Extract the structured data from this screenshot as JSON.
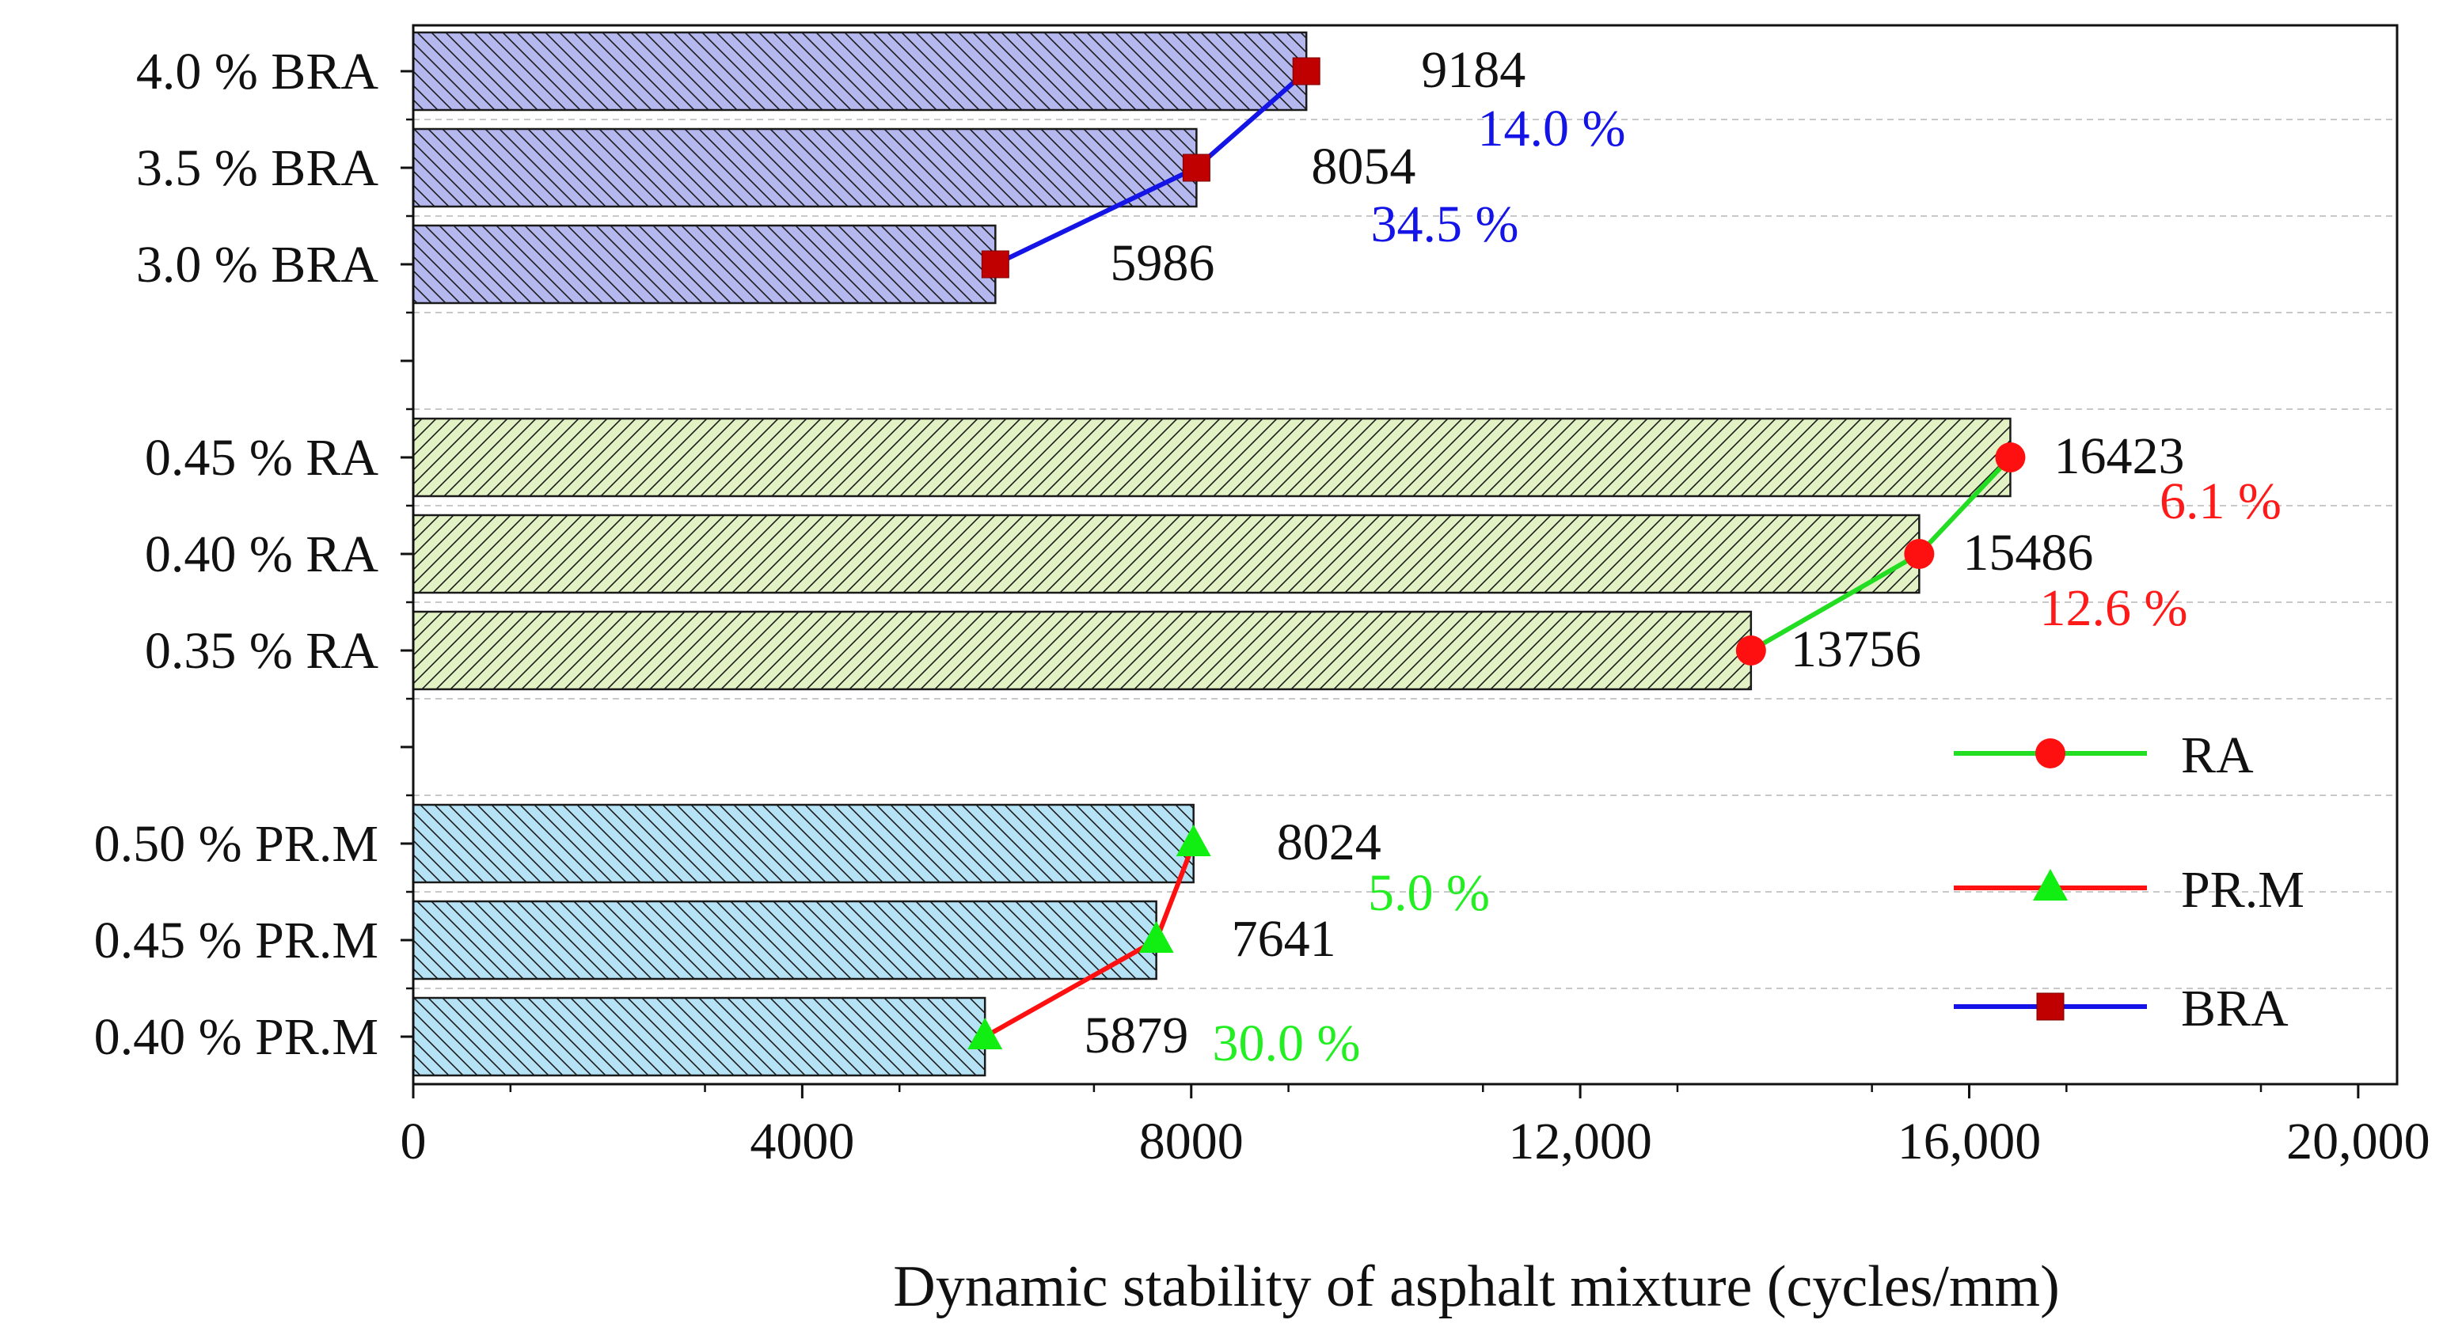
{
  "chart_data": {
    "type": "bar",
    "orientation": "horizontal",
    "xlabel": "Dynamic stability of asphalt mixture (cycles/mm)",
    "xlim": [
      0,
      20400
    ],
    "xticks": [
      0,
      4000,
      8000,
      12000,
      16000,
      20000
    ],
    "xtick_labels": [
      "0",
      "4000",
      "8000",
      "12,000",
      "16,000",
      "20,000"
    ],
    "grid": "horizontal-dashed",
    "groups": [
      {
        "name": "BRA",
        "bar_color": "#b5b8ef",
        "hatch": "backslash",
        "line_color": "#1414e6",
        "marker": "square",
        "marker_color": "#c00000",
        "categories": [
          "4.0 % BRA",
          "3.5 % BRA",
          "3.0 % BRA"
        ],
        "values": [
          9184,
          8054,
          5986
        ],
        "value_labels": [
          "9184",
          "8054",
          "5986"
        ],
        "increase_labels": [
          "14.0 %",
          "34.5 %"
        ],
        "increase_color": "#1414e6"
      },
      {
        "name": "RA",
        "bar_color": "#e3f2c4",
        "hatch": "slash",
        "line_color": "#22dd22",
        "marker": "circle",
        "marker_color": "#ff1010",
        "categories": [
          "0.45 % RA",
          "0.40 % RA",
          "0.35 % RA"
        ],
        "values": [
          16423,
          15486,
          13756
        ],
        "value_labels": [
          "16423",
          "15486",
          "13756"
        ],
        "increase_labels": [
          "6.1 %",
          "12.6 %"
        ],
        "increase_color": "#ff1a1a"
      },
      {
        "name": "PR.M",
        "bar_color": "#b6e2f6",
        "hatch": "backslash",
        "line_color": "#ff1010",
        "marker": "triangle",
        "marker_color": "#11ee11",
        "categories": [
          "0.50 % PR.M",
          "0.45 % PR.M",
          "0.40 % PR.M"
        ],
        "values": [
          8024,
          7641,
          5879
        ],
        "value_labels": [
          "8024",
          "7641",
          "5879"
        ],
        "increase_labels": [
          "5.0 %",
          "30.0 %"
        ],
        "increase_color": "#22ee22"
      }
    ],
    "legend": {
      "placement": "right-bottom",
      "entries": [
        {
          "label": "RA",
          "line_color": "#22dd22",
          "marker": "circle",
          "marker_color": "#ff1010"
        },
        {
          "label": "PR.M",
          "line_color": "#ff1010",
          "marker": "triangle",
          "marker_color": "#11ee11"
        },
        {
          "label": "BRA",
          "line_color": "#1414e6",
          "marker": "square",
          "marker_color": "#c00000"
        }
      ]
    }
  }
}
